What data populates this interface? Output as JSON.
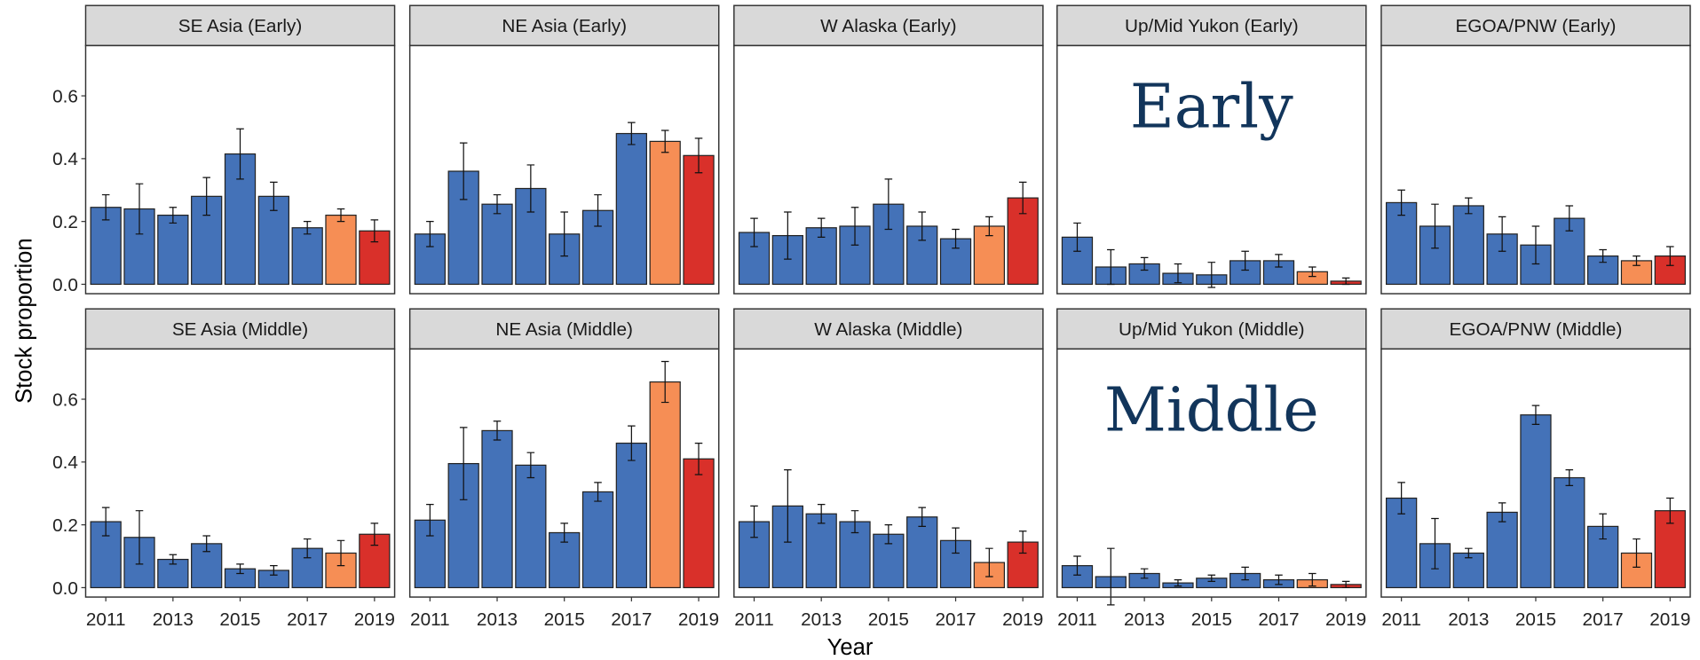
{
  "chart_data": {
    "type": "bar",
    "ylabel": "Stock proportion",
    "xlabel": "Year",
    "x": [
      2011,
      2012,
      2013,
      2014,
      2015,
      2016,
      2017,
      2018,
      2019
    ],
    "xlim": [
      2010.4,
      2019.6
    ],
    "xticks": [
      2011,
      2013,
      2015,
      2017,
      2019
    ],
    "ylim": [
      -0.03,
      0.76
    ],
    "yticks": [
      {
        "value": 0,
        "label": "0.0"
      },
      0.2,
      0.4,
      0.6
    ],
    "colors": [
      "#4472b8",
      "#4472b8",
      "#4472b8",
      "#4472b8",
      "#4472b8",
      "#4472b8",
      "#4472b8",
      "#f68e55",
      "#d9302a"
    ],
    "panels": [
      {
        "title": "SE Asia (Early)",
        "values": [
          0.245,
          0.24,
          0.22,
          0.28,
          0.415,
          0.28,
          0.18,
          0.22,
          0.17
        ],
        "errors": [
          0.04,
          0.08,
          0.025,
          0.06,
          0.08,
          0.045,
          0.02,
          0.02,
          0.035
        ]
      },
      {
        "title": "NE Asia (Early)",
        "values": [
          0.16,
          0.36,
          0.255,
          0.305,
          0.16,
          0.235,
          0.48,
          0.455,
          0.41
        ],
        "errors": [
          0.04,
          0.09,
          0.03,
          0.075,
          0.07,
          0.05,
          0.035,
          0.035,
          0.055
        ]
      },
      {
        "title": "W Alaska (Early)",
        "values": [
          0.165,
          0.155,
          0.18,
          0.185,
          0.255,
          0.185,
          0.145,
          0.185,
          0.275
        ],
        "errors": [
          0.045,
          0.075,
          0.03,
          0.06,
          0.08,
          0.045,
          0.03,
          0.03,
          0.05
        ]
      },
      {
        "title": "Up/Mid Yukon (Early)",
        "annotation": "Early",
        "values": [
          0.15,
          0.055,
          0.065,
          0.035,
          0.03,
          0.075,
          0.075,
          0.04,
          0.01
        ],
        "errors": [
          0.045,
          0.055,
          0.02,
          0.03,
          0.04,
          0.03,
          0.02,
          0.015,
          0.01
        ]
      },
      {
        "title": "EGOA/PNW (Early)",
        "values": [
          0.26,
          0.185,
          0.25,
          0.16,
          0.125,
          0.21,
          0.09,
          0.075,
          0.09
        ],
        "errors": [
          0.04,
          0.07,
          0.025,
          0.055,
          0.06,
          0.04,
          0.02,
          0.015,
          0.03
        ]
      },
      {
        "title": "SE Asia (Middle)",
        "values": [
          0.21,
          0.16,
          0.09,
          0.14,
          0.06,
          0.055,
          0.125,
          0.11,
          0.17
        ],
        "errors": [
          0.045,
          0.085,
          0.015,
          0.025,
          0.015,
          0.015,
          0.03,
          0.04,
          0.035
        ]
      },
      {
        "title": "NE Asia (Middle)",
        "values": [
          0.215,
          0.395,
          0.5,
          0.39,
          0.175,
          0.305,
          0.46,
          0.655,
          0.41
        ],
        "errors": [
          0.05,
          0.115,
          0.03,
          0.04,
          0.03,
          0.03,
          0.055,
          0.065,
          0.05
        ]
      },
      {
        "title": "W Alaska (Middle)",
        "values": [
          0.21,
          0.26,
          0.235,
          0.21,
          0.17,
          0.225,
          0.15,
          0.08,
          0.145
        ],
        "errors": [
          0.05,
          0.115,
          0.03,
          0.035,
          0.03,
          0.03,
          0.04,
          0.045,
          0.035
        ]
      },
      {
        "title": "Up/Mid Yukon (Middle)",
        "annotation": "Middle",
        "values": [
          0.07,
          0.035,
          0.045,
          0.015,
          0.03,
          0.045,
          0.025,
          0.025,
          0.01
        ],
        "errors": [
          0.03,
          0.09,
          0.015,
          0.01,
          0.01,
          0.02,
          0.015,
          0.02,
          0.01
        ]
      },
      {
        "title": "EGOA/PNW (Middle)",
        "values": [
          0.285,
          0.14,
          0.11,
          0.24,
          0.55,
          0.35,
          0.195,
          0.11,
          0.245
        ],
        "errors": [
          0.05,
          0.08,
          0.015,
          0.03,
          0.03,
          0.025,
          0.04,
          0.045,
          0.04
        ]
      }
    ]
  }
}
